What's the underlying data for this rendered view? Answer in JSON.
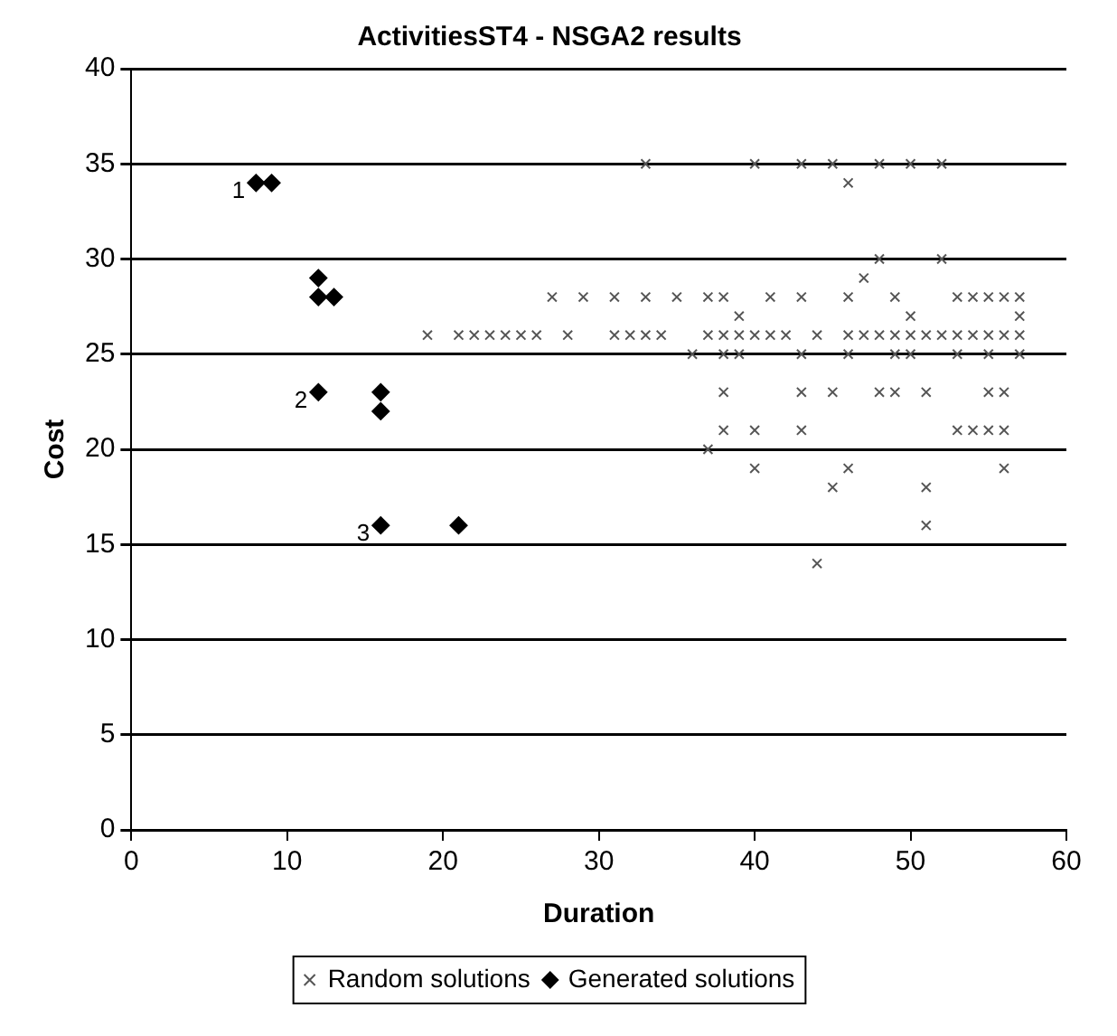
{
  "chart_data": {
    "type": "scatter",
    "title": "ActivitiesST4 - NSGA2 results",
    "xlabel": "Duration",
    "ylabel": "Cost",
    "xlim": [
      0,
      60
    ],
    "xticks": [
      0,
      10,
      20,
      30,
      40,
      50,
      60
    ],
    "ylim": [
      0,
      40
    ],
    "yticks": [
      0,
      5,
      10,
      15,
      20,
      25,
      30,
      35,
      40
    ],
    "grid": "y",
    "legend": "bottom",
    "series": [
      {
        "name": "Random solutions",
        "color": "#555555",
        "marker": "cross",
        "x": [
          33,
          40,
          43,
          45,
          48,
          50,
          52,
          46,
          48,
          52,
          47,
          27,
          29,
          31,
          33,
          35,
          37,
          38,
          41,
          43,
          46,
          49,
          53,
          54,
          55,
          56,
          57,
          39,
          50,
          57,
          19,
          21,
          22,
          23,
          24,
          25,
          26,
          28,
          31,
          32,
          33,
          34,
          37,
          38,
          39,
          40,
          41,
          42,
          44,
          46,
          47,
          48,
          49,
          50,
          51,
          52,
          53,
          54,
          55,
          56,
          57,
          36,
          38,
          39,
          43,
          46,
          49,
          50,
          53,
          55,
          57,
          38,
          43,
          45,
          48,
          49,
          51,
          55,
          56,
          38,
          40,
          43,
          53,
          54,
          55,
          56,
          37,
          40,
          46,
          56,
          45,
          51,
          51,
          44
        ],
        "values": [
          35,
          35,
          35,
          35,
          35,
          35,
          35,
          34,
          30,
          30,
          29,
          28,
          28,
          28,
          28,
          28,
          28,
          28,
          28,
          28,
          28,
          28,
          28,
          28,
          28,
          28,
          28,
          27,
          27,
          27,
          26,
          26,
          26,
          26,
          26,
          26,
          26,
          26,
          26,
          26,
          26,
          26,
          26,
          26,
          26,
          26,
          26,
          26,
          26,
          26,
          26,
          26,
          26,
          26,
          26,
          26,
          26,
          26,
          26,
          26,
          26,
          25,
          25,
          25,
          25,
          25,
          25,
          25,
          25,
          25,
          25,
          23,
          23,
          23,
          23,
          23,
          23,
          23,
          23,
          21,
          21,
          21,
          21,
          21,
          21,
          21,
          20,
          19,
          19,
          19,
          18,
          18,
          16,
          14
        ]
      },
      {
        "name": "Generated solutions",
        "color": "#000000",
        "marker": "diamond",
        "x": [
          8,
          9,
          12,
          12,
          13,
          12,
          16,
          16,
          16,
          21
        ],
        "values": [
          34,
          34,
          29,
          28,
          28,
          23,
          23,
          22,
          16,
          16
        ]
      }
    ],
    "annotations": [
      {
        "text": "1",
        "x": 8,
        "y": 34
      },
      {
        "text": "2",
        "x": 12,
        "y": 23
      },
      {
        "text": "3",
        "x": 16,
        "y": 16
      }
    ]
  }
}
